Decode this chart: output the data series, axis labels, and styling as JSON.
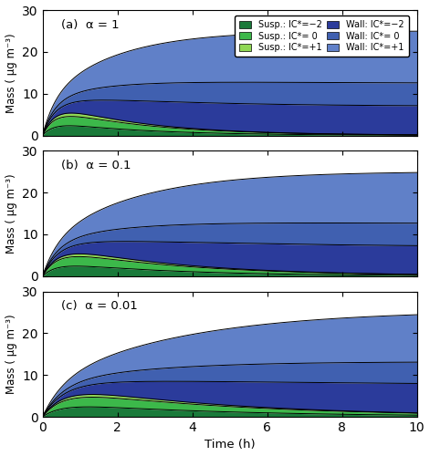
{
  "title_a": "(a)  α = 1",
  "title_b": "(b)  α = 0.1",
  "title_c": "(c)  α = 0.01",
  "xlabel": "Time (h)",
  "ylabel": "Mass ( μg m⁻³)",
  "xlim": [
    0,
    10
  ],
  "ylim": [
    0,
    30
  ],
  "yticks": [
    0,
    10,
    20,
    30
  ],
  "xticks": [
    0,
    2,
    4,
    6,
    8,
    10
  ],
  "colors_susp": [
    "#1a7a3a",
    "#3cb84a",
    "#90d855"
  ],
  "colors_wall": [
    "#2b3b9b",
    "#4060b0",
    "#6080c8"
  ],
  "legend_labels_susp": [
    "Susp.: lC*=−2",
    "Susp.: lC*= 0",
    "Susp.: lC*=+1"
  ],
  "legend_labels_wall": [
    "Wall: lC*=−2",
    "Wall: lC*= 0",
    "Wall: lC*=+1"
  ],
  "panel_background": "#ffffff"
}
